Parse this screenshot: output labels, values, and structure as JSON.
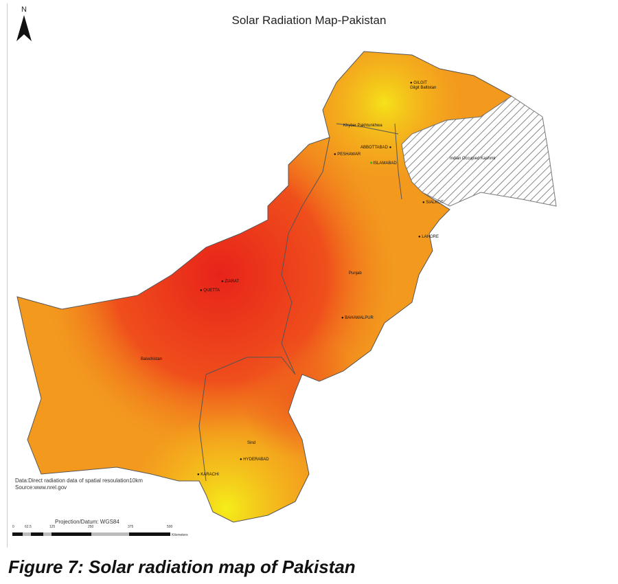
{
  "title": "Solar Radiation Map-Pakistan",
  "north_label": "N",
  "data_note": "Data:Direct radiation data of  spatial resoulation10km",
  "source_note": "Source:www.nrel.gov",
  "projection": "Projection/Datum:  WGS84",
  "scale_bar": {
    "ticks": [
      "0",
      "62.5",
      "125",
      "250",
      "375",
      "500"
    ],
    "unit": "Kilometers"
  },
  "caption": "Figure 7: Solar radiation map of Pakistan",
  "regions": {
    "gb": "Gilgit Baltistan",
    "kp": "Khyber Pakhtunkhwa",
    "kashmir": "Indian Occupied Kashmir",
    "punjab": "Punjab",
    "balochistan": "Baluchistan",
    "sind": "Sind"
  },
  "cities": {
    "gilgit": "GILGIT",
    "peshawar": "PESHAWAR",
    "abbottabad": "ABBOTTABAD",
    "islamabad": "ISLAMABAD",
    "sialkot": "SIALKOT",
    "lahore": "LAHORE",
    "quetta": "QUETTA",
    "ziarat": "ZIARAT",
    "bahawalpur": "BAHAWALPUR",
    "hyderabad": "HYDERABAD",
    "karachi": "KARACHI"
  },
  "colors": {
    "high": "#e8231a",
    "mid": "#f28a1c",
    "low": "#f5e21a",
    "hatch": "#888888"
  }
}
